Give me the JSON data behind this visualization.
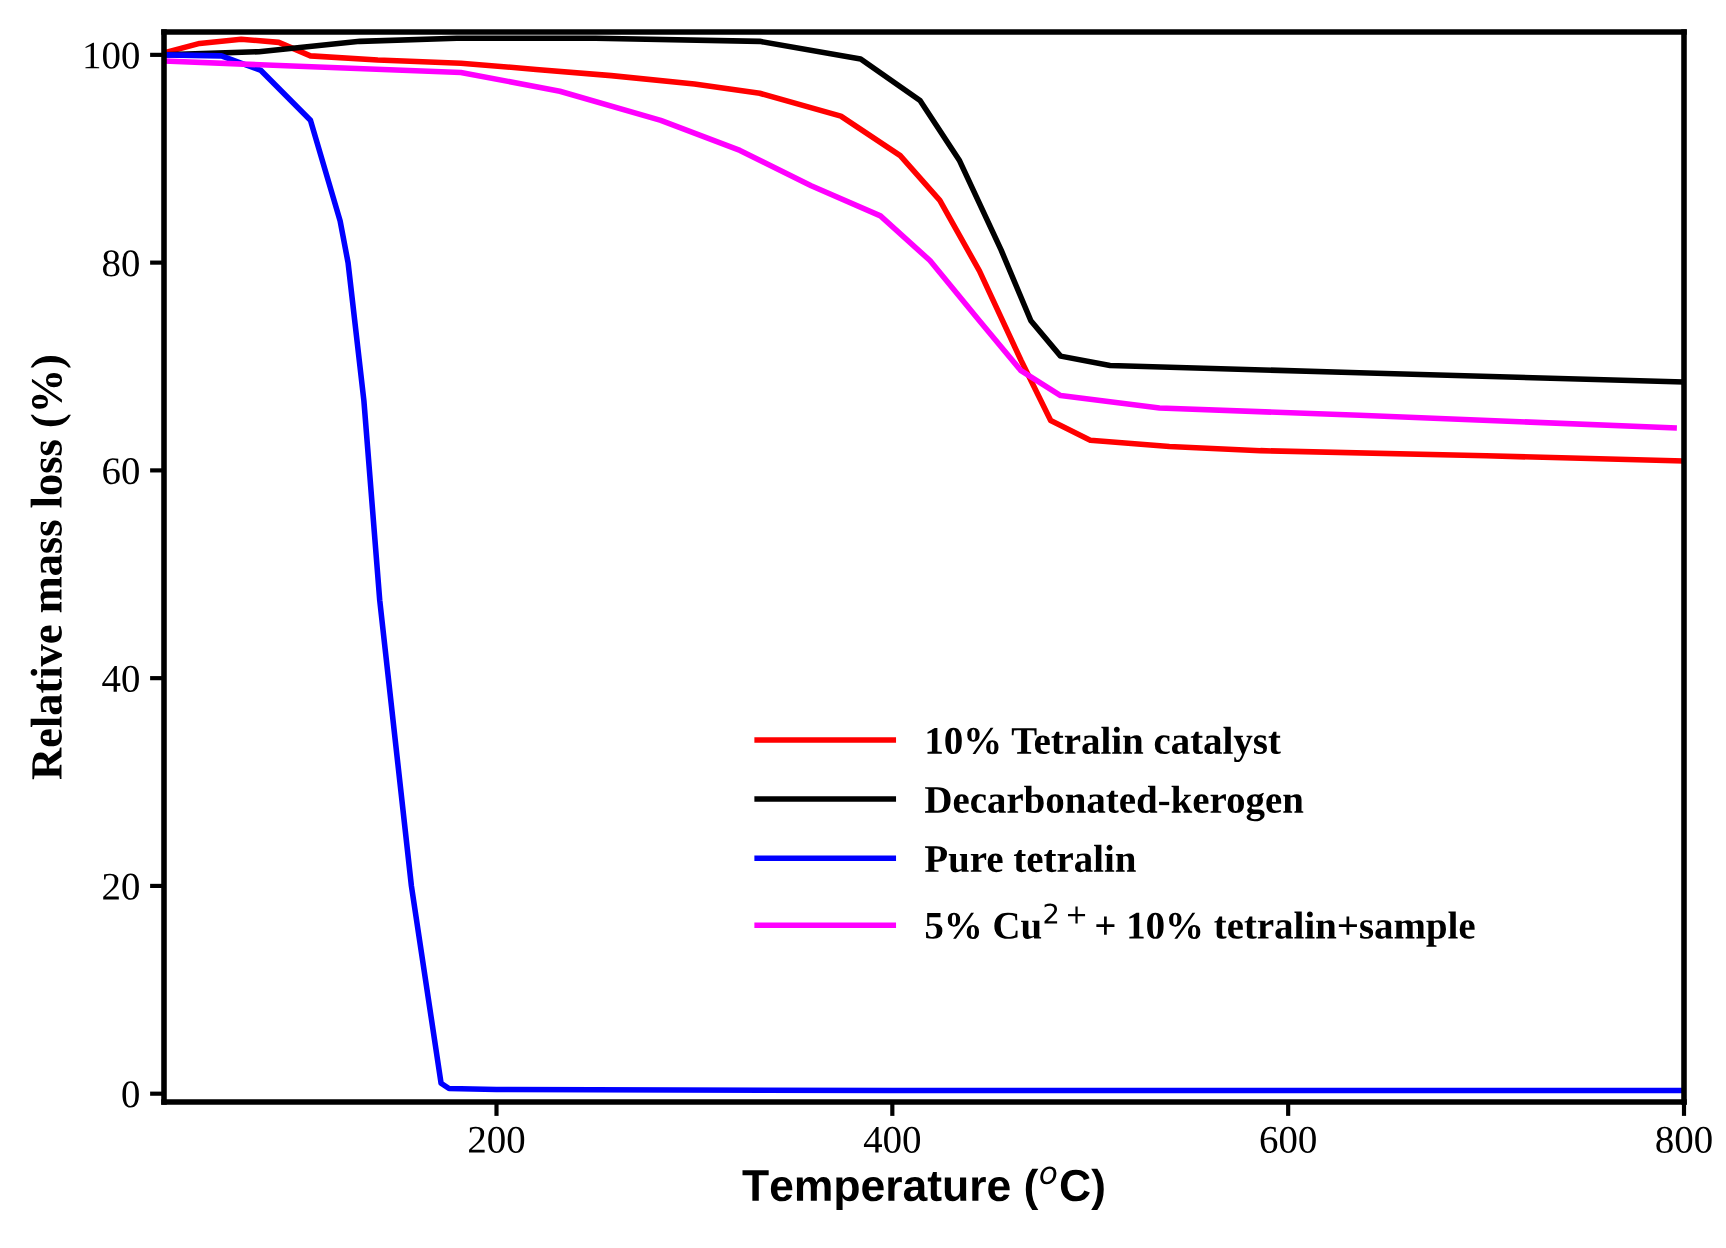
{
  "chart_data": {
    "type": "line",
    "xlabel": "Temperature ($^{o}$C)",
    "ylabel": "Relative mass loss (%)",
    "xlim": [
      32,
      800
    ],
    "ylim": [
      -0.8,
      102.2
    ],
    "xticks": [
      200,
      400,
      600,
      800
    ],
    "yticks": [
      0,
      20,
      40,
      60,
      80,
      100
    ],
    "grid": false,
    "legend": "bottom right",
    "marker": "none",
    "line_style": "solid",
    "series": [
      {
        "name": "10% Tetralin catalyst",
        "color": "#ff0000",
        "x": [
          32,
          50,
          71,
          90,
          106,
          140,
          182,
          220,
          258,
          300,
          333,
          374,
          404,
          424,
          444,
          465,
          480,
          500,
          540,
          586,
          700,
          800
        ],
        "values": [
          100.2,
          101.1,
          101.5,
          101.2,
          99.9,
          99.5,
          99.2,
          98.6,
          98.0,
          97.2,
          96.3,
          94.1,
          90.3,
          86.0,
          79.2,
          70.6,
          64.8,
          62.9,
          62.3,
          61.9,
          61.4,
          60.9
        ]
      },
      {
        "name": "Decarbonated-kerogen",
        "color": "#000000",
        "x": [
          32,
          80,
          131,
          180,
          250,
          333,
          384,
          414,
          434,
          455,
          470,
          485,
          510,
          636,
          800
        ],
        "values": [
          100,
          100.3,
          101.3,
          101.6,
          101.6,
          101.3,
          99.6,
          95.6,
          89.8,
          81.2,
          74.4,
          71.0,
          70.1,
          69.4,
          68.5
        ]
      },
      {
        "name": "Pure tetralin",
        "color": "#0000ff",
        "x": [
          32,
          61,
          81,
          106,
          121,
          125,
          133,
          141,
          157,
          172,
          176,
          200,
          400,
          600,
          800
        ],
        "values": [
          100,
          99.9,
          98.5,
          93.7,
          84,
          80,
          66.7,
          47.5,
          20,
          1,
          0.5,
          0.4,
          0.3,
          0.3,
          0.3
        ]
      },
      {
        "name": "5% Cu$^{2+}$+ 10% tetralin+sample",
        "color": "#ff00ff",
        "x": [
          32,
          100,
          182,
          232,
          283,
          323,
          359,
          394,
          419,
          444,
          465,
          485,
          535,
          636,
          795
        ],
        "values": [
          99.4,
          98.9,
          98.3,
          96.5,
          93.7,
          90.8,
          87.4,
          84.5,
          80.2,
          74.4,
          69.6,
          67.2,
          66.0,
          65.3,
          64.1
        ]
      }
    ]
  }
}
